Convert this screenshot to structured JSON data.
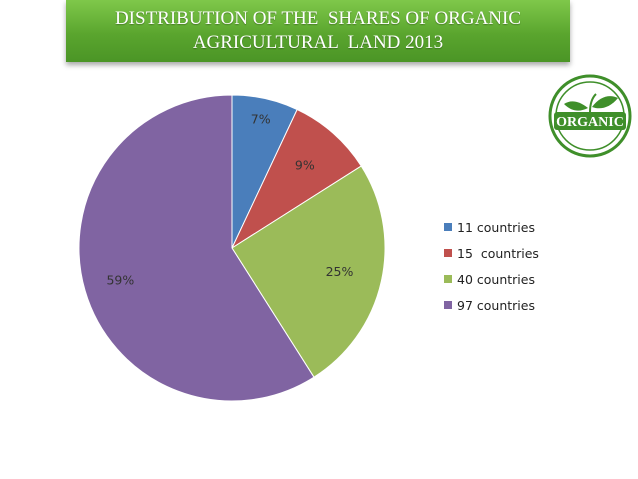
{
  "title": "DISTRIBUTION OF THE  SHARES OF ORGANIC\nAGRICULTURAL  LAND 2013",
  "logo": {
    "text": "ORGANIC",
    "color": "#3f8f2a"
  },
  "chart_data": {
    "type": "pie",
    "title": "DISTRIBUTION OF THE  SHARES OF ORGANIC AGRICULTURAL  LAND 2013",
    "legend_position": "right",
    "slices": [
      {
        "name": "11 countries",
        "value": 7,
        "label": "7%",
        "color": "#4a7ebb"
      },
      {
        "name": "15  countries",
        "value": 9,
        "label": "9%",
        "color": "#c0504d"
      },
      {
        "name": "40 countries",
        "value": 25,
        "label": "25%",
        "color": "#9bbb59"
      },
      {
        "name": "97 countries",
        "value": 59,
        "label": "59%",
        "color": "#8064a2"
      }
    ]
  }
}
